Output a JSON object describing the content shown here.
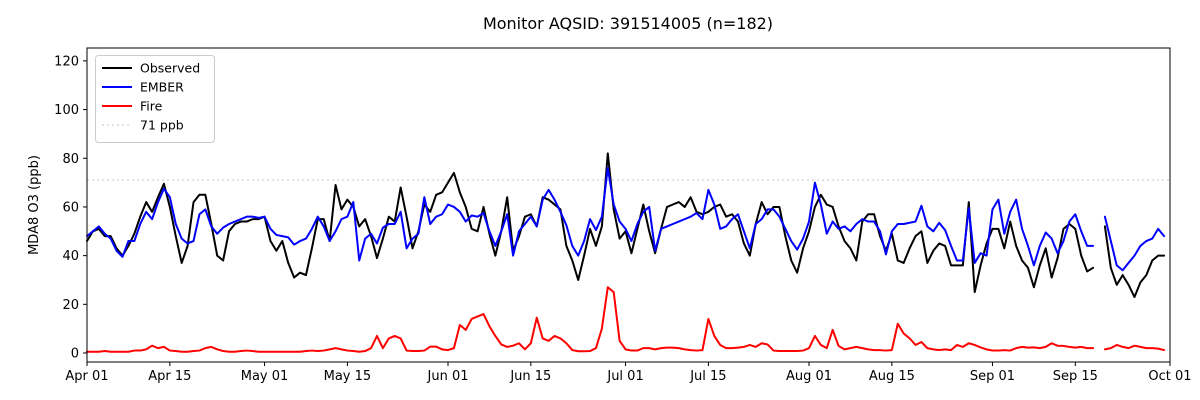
{
  "window": {
    "background": "#ffffff"
  },
  "chart_data": {
    "type": "line",
    "title": "Monitor AQSID: 391514005 (n=182)",
    "ylabel": "MDA8 O3 (ppb)",
    "xlabel": "",
    "grid": false,
    "legend_position": "upper left",
    "x_domain_days": [
      0,
      183
    ],
    "x_tick_days": [
      0,
      14,
      30,
      44,
      61,
      75,
      91,
      105,
      122,
      136,
      153,
      167,
      183
    ],
    "x_tick_labels": [
      "Apr 01",
      "Apr 15",
      "May 01",
      "May 15",
      "Jun 01",
      "Jun 15",
      "Jul 01",
      "Jul 15",
      "Aug 01",
      "Aug 15",
      "Sep 01",
      "Sep 15",
      "Oct 01"
    ],
    "y_ticks": [
      0,
      20,
      40,
      60,
      80,
      100,
      120
    ],
    "ylim": [
      -3.7,
      125.3
    ],
    "missing_day_index": 171,
    "threshold": {
      "value": 71,
      "label": "71 ppb",
      "color": "#d9d9d9"
    },
    "series": [
      {
        "name": "Observed",
        "color": "#000000",
        "values": [
          46,
          50,
          51,
          48,
          48,
          43,
          40,
          44,
          49,
          56,
          62,
          58,
          64,
          69.5,
          60,
          48,
          37,
          44,
          62,
          65,
          65,
          53,
          40,
          38,
          50,
          53,
          54,
          54,
          55,
          55,
          56,
          46,
          42,
          46,
          37,
          31,
          33,
          32,
          43,
          55,
          55,
          46,
          69,
          59,
          63,
          60,
          52,
          55,
          48,
          39,
          47,
          56,
          54,
          68,
          56,
          43,
          50,
          61,
          58,
          65,
          66,
          70,
          74,
          66,
          60,
          51,
          50,
          60,
          49,
          40,
          50,
          64,
          42,
          48,
          56,
          57,
          52,
          64,
          63,
          61,
          59,
          44,
          38,
          30,
          40,
          51,
          44,
          52,
          82,
          59,
          47,
          50,
          41,
          51,
          61,
          50,
          41,
          51,
          60,
          61,
          62,
          60,
          64,
          58,
          57,
          58,
          60,
          61,
          56,
          57,
          54,
          45,
          40,
          53,
          62,
          57,
          60,
          60,
          48,
          38,
          33,
          43,
          50,
          60,
          65,
          61,
          60,
          52,
          46,
          43,
          38,
          54,
          57,
          57,
          48,
          42,
          49,
          38,
          37,
          43,
          48,
          50,
          37,
          42,
          45,
          44,
          36,
          36,
          36,
          62,
          25,
          36,
          45,
          51,
          51,
          43,
          54,
          44,
          38,
          35,
          27,
          36,
          43,
          31,
          39,
          51,
          53,
          51,
          40,
          33.5,
          35,
          null,
          52,
          35,
          28,
          32,
          28,
          23,
          29,
          32,
          38,
          40,
          40
        ]
      },
      {
        "name": "EMBER",
        "color": "#0000ff",
        "values": [
          48,
          50,
          52,
          49,
          47,
          42,
          39.5,
          46,
          46,
          53,
          58,
          55,
          62,
          67.5,
          64,
          53,
          47,
          45,
          46,
          57,
          59,
          52,
          49,
          51.5,
          53,
          54,
          55,
          56,
          56,
          55.5,
          56,
          51,
          48.5,
          48,
          47.5,
          44.5,
          46,
          47,
          51,
          56,
          52,
          46,
          50,
          55,
          56,
          62,
          38,
          47,
          49,
          45,
          51.5,
          53,
          53,
          58,
          43,
          47,
          49,
          64,
          53,
          56,
          57,
          61,
          60,
          58,
          54,
          56.5,
          56,
          57.5,
          50,
          44,
          50,
          57,
          40,
          50,
          53,
          56,
          52,
          63,
          67,
          63,
          58,
          52.5,
          44,
          40,
          46,
          55,
          50.5,
          56,
          76,
          61,
          54,
          51,
          46,
          53,
          58,
          60,
          42,
          51,
          52,
          53,
          54,
          55,
          56,
          57.5,
          55,
          67,
          61,
          51,
          52,
          55,
          57,
          50,
          43,
          53,
          55,
          59,
          59,
          56,
          51,
          46,
          42.5,
          47,
          54,
          70,
          61,
          49,
          54,
          51,
          52,
          50,
          53,
          55,
          54,
          54,
          50,
          40.5,
          50,
          53,
          53,
          53.5,
          54,
          60.5,
          52,
          50,
          53.5,
          50.5,
          44,
          38,
          38,
          59.5,
          37,
          41,
          40,
          59,
          63,
          49,
          58,
          63,
          51,
          44,
          36,
          44,
          49.5,
          47,
          41,
          46,
          54,
          57,
          50,
          44,
          44,
          null,
          56,
          46,
          36,
          34,
          37,
          40,
          44,
          46,
          47,
          51,
          48
        ]
      },
      {
        "name": "Fire",
        "color": "#ff0000",
        "values": [
          0.5,
          0.5,
          0.5,
          0.8,
          0.5,
          0.5,
          0.5,
          0.5,
          1,
          1,
          1.5,
          3,
          2,
          2.5,
          1,
          0.8,
          0.5,
          0.5,
          0.8,
          1,
          2,
          2.5,
          1.5,
          0.8,
          0.5,
          0.5,
          0.8,
          1,
          0.8,
          0.5,
          0.5,
          0.5,
          0.5,
          0.5,
          0.5,
          0.5,
          0.5,
          0.8,
          1,
          0.8,
          1,
          1.5,
          2,
          1.5,
          1,
          0.8,
          0.5,
          0.8,
          2,
          7,
          2,
          6,
          7,
          6,
          1,
          0.8,
          0.8,
          1,
          2.6,
          2.6,
          1.5,
          1.2,
          2,
          11.5,
          9.5,
          14,
          15,
          16,
          11,
          7,
          3.5,
          2.5,
          3,
          4,
          1.5,
          4,
          14.5,
          6,
          5,
          7,
          6,
          4,
          1.2,
          0.7,
          0.7,
          0.8,
          2,
          10,
          27,
          25,
          5,
          1.5,
          1,
          1,
          2,
          2,
          1.5,
          2,
          2.2,
          2.2,
          2,
          1.5,
          1.2,
          1,
          1.2,
          14,
          7,
          3.3,
          2,
          2,
          2.2,
          2.5,
          3.3,
          2.5,
          4,
          3.5,
          1,
          0.8,
          0.8,
          0.8,
          0.8,
          1,
          2,
          7,
          3.3,
          2,
          9.5,
          2.9,
          1.5,
          2,
          2.5,
          2,
          1.5,
          1.2,
          1.2,
          1,
          1.2,
          12,
          8,
          6,
          3.3,
          4.5,
          2,
          1.5,
          1.2,
          1.5,
          1.2,
          3.3,
          2.5,
          4,
          3.3,
          2.3,
          1.5,
          1,
          1,
          1.2,
          1,
          2,
          2.5,
          2.2,
          2.3,
          2,
          2.5,
          4,
          3,
          2.9,
          2.5,
          2.2,
          2.5,
          2,
          2,
          null,
          1.5,
          2,
          3.3,
          2.5,
          2,
          3,
          2.5,
          2,
          2,
          1.8,
          1.2
        ]
      }
    ]
  }
}
